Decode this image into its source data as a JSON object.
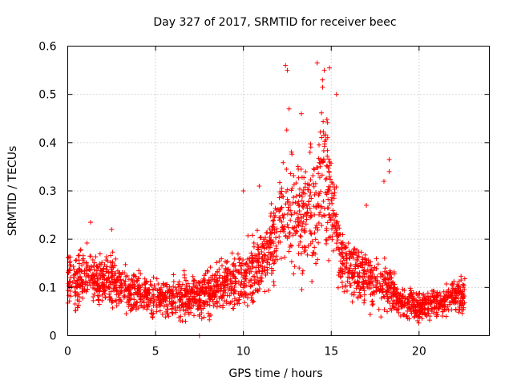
{
  "chart_data": {
    "type": "scatter",
    "title": "Day 327 of 2017, SRMTID for receiver beec",
    "xlabel": "GPS time / hours",
    "ylabel": "SRMTID / TECUs",
    "xlim": [
      0,
      24
    ],
    "ylim": [
      0,
      0.6
    ],
    "xticks": [
      0,
      5,
      10,
      15,
      20
    ],
    "yticks": [
      0,
      0.1,
      0.2,
      0.3,
      0.4,
      0.5,
      0.6
    ],
    "xtick_labels": [
      "0",
      "5",
      "10",
      "15",
      "20"
    ],
    "ytick_labels": [
      "0",
      "0.1",
      "0.2",
      "0.3",
      "0.4",
      "0.5",
      "0.6"
    ],
    "grid": true,
    "marker": "plus",
    "series_color": "#ff0000",
    "series": [
      {
        "name": "SRMTID",
        "profile_hours": [
          0,
          0.5,
          1.0,
          1.5,
          2.0,
          2.5,
          3.0,
          4.0,
          5.0,
          6.0,
          7.0,
          8.0,
          9.0,
          10.0,
          10.5,
          11.0,
          11.5,
          12.0,
          12.5,
          13.0,
          13.5,
          14.0,
          14.5,
          15.0,
          15.5,
          16.0,
          17.0,
          18.0,
          18.5,
          19.0,
          20.0,
          21.0,
          22.0,
          22.6
        ],
        "profile_median": [
          0.12,
          0.11,
          0.13,
          0.12,
          0.11,
          0.12,
          0.1,
          0.09,
          0.08,
          0.08,
          0.08,
          0.09,
          0.11,
          0.12,
          0.13,
          0.15,
          0.18,
          0.22,
          0.26,
          0.25,
          0.24,
          0.27,
          0.32,
          0.3,
          0.16,
          0.14,
          0.12,
          0.1,
          0.09,
          0.07,
          0.06,
          0.07,
          0.08,
          0.09
        ],
        "profile_spread": [
          0.05,
          0.05,
          0.06,
          0.05,
          0.05,
          0.05,
          0.04,
          0.04,
          0.04,
          0.04,
          0.04,
          0.04,
          0.05,
          0.06,
          0.06,
          0.07,
          0.08,
          0.1,
          0.13,
          0.12,
          0.11,
          0.13,
          0.14,
          0.13,
          0.06,
          0.05,
          0.05,
          0.05,
          0.04,
          0.03,
          0.03,
          0.03,
          0.03,
          0.04
        ],
        "peaks": [
          {
            "x": 12.4,
            "y": 0.56
          },
          {
            "x": 12.5,
            "y": 0.55
          },
          {
            "x": 14.2,
            "y": 0.565
          },
          {
            "x": 14.6,
            "y": 0.55
          },
          {
            "x": 14.9,
            "y": 0.555
          },
          {
            "x": 12.6,
            "y": 0.47
          },
          {
            "x": 13.3,
            "y": 0.46
          },
          {
            "x": 14.5,
            "y": 0.53
          },
          {
            "x": 15.3,
            "y": 0.5
          },
          {
            "x": 18.3,
            "y": 0.365
          },
          {
            "x": 18.3,
            "y": 0.34
          },
          {
            "x": 17.0,
            "y": 0.27
          },
          {
            "x": 18.0,
            "y": 0.32
          },
          {
            "x": 10.9,
            "y": 0.31
          },
          {
            "x": 10.0,
            "y": 0.3
          },
          {
            "x": 7.5,
            "y": 0.0
          },
          {
            "x": 1.3,
            "y": 0.235
          },
          {
            "x": 2.5,
            "y": 0.22
          }
        ],
        "n_points": 2400
      }
    ]
  }
}
